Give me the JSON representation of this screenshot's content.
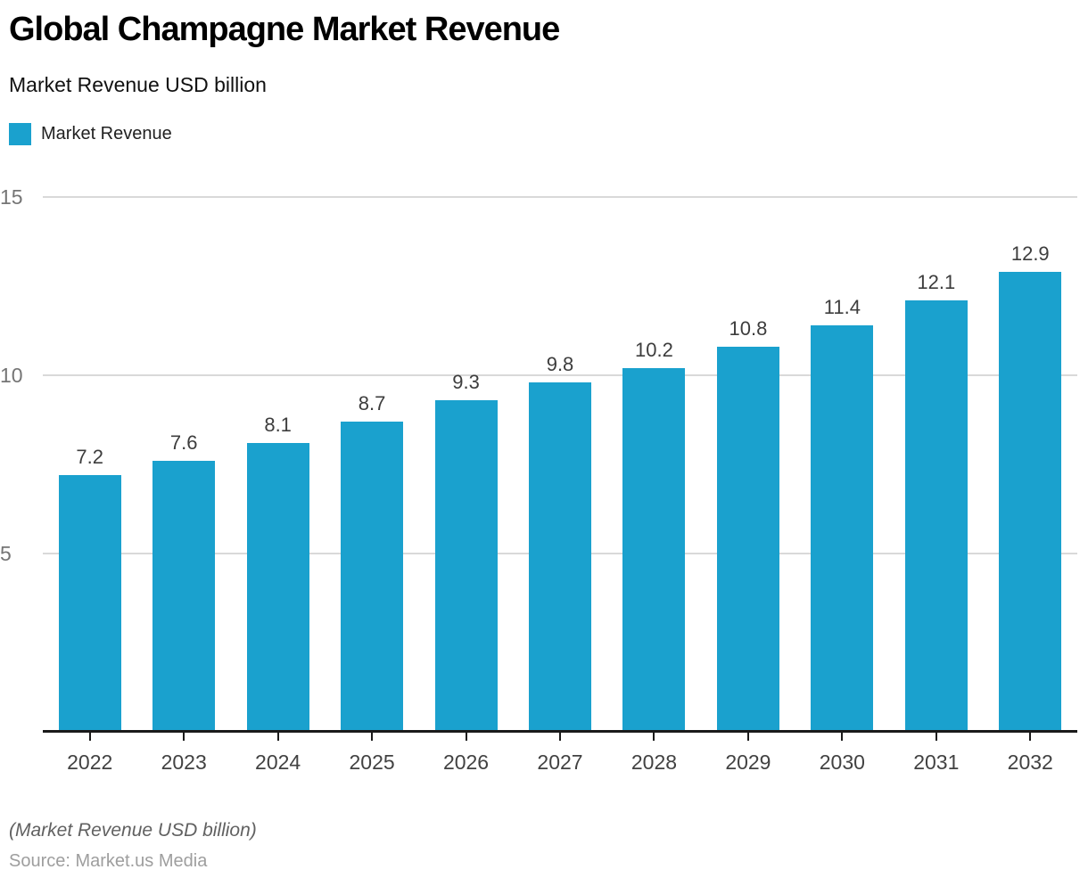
{
  "header": {
    "title": "Global Champagne Market Revenue",
    "subtitle": "Market Revenue USD billion"
  },
  "legend": {
    "label": "Market Revenue",
    "color": "#1AA1CE"
  },
  "chart_data": {
    "type": "bar",
    "title": "Global Champagne Market Revenue",
    "subtitle": "Market Revenue USD billion",
    "categories": [
      "2022",
      "2023",
      "2024",
      "2025",
      "2026",
      "2027",
      "2028",
      "2029",
      "2030",
      "2031",
      "2032"
    ],
    "values": [
      7.2,
      7.6,
      8.1,
      8.7,
      9.3,
      9.8,
      10.2,
      10.8,
      11.4,
      12.1,
      12.9
    ],
    "series_name": "Market Revenue",
    "xlabel": "",
    "ylabel": "Market Revenue USD billion",
    "ylim": [
      0,
      15
    ],
    "yticks": [
      5,
      10,
      15
    ],
    "grid": true,
    "legend_position": "top-left",
    "value_labels": true
  },
  "colors": {
    "bar": "#1AA1CE",
    "grid": "#D9D9D9",
    "axis": "#1A1A1A",
    "ytick_label": "#757575",
    "value_label": "#3D3D3D",
    "category_label": "#424242"
  },
  "footer": {
    "note": "(Market Revenue USD billion)",
    "source": "Source: Market.us Media"
  }
}
